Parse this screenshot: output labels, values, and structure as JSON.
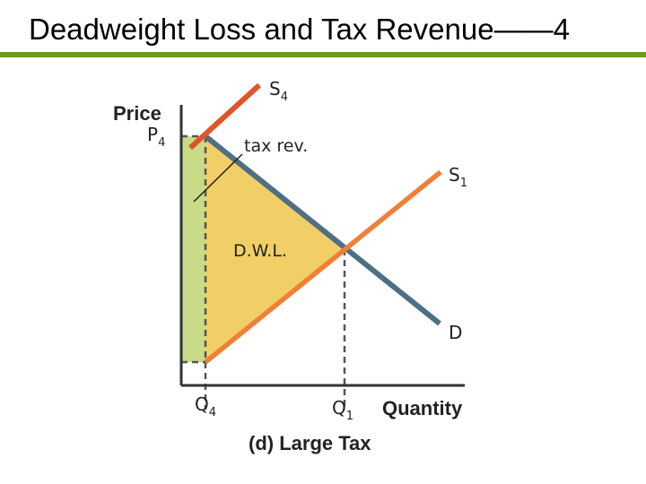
{
  "slide": {
    "title": "Deadweight Loss and Tax Revenue——4"
  },
  "diagram": {
    "axis_labels": {
      "price": "Price",
      "quantity": "Quantity"
    },
    "curve_labels": {
      "supply_taxed": "S",
      "supply_taxed_sub": "4",
      "supply_original": "S",
      "supply_original_sub": "1",
      "demand": "D"
    },
    "price_tick": {
      "main": "P",
      "sub": "4"
    },
    "quantity_ticks": [
      {
        "main": "Q",
        "sub": "4"
      },
      {
        "main": "Q",
        "sub": "1"
      }
    ],
    "region_labels": {
      "tax_revenue": "tax rev.",
      "deadweight_loss": "D.W.L."
    },
    "caption": "(d) Large Tax"
  },
  "colors": {
    "title_rule": "#6b9a1f",
    "tax_revenue_fill": "#c8dc88",
    "dwl_fill": "#f1cf66",
    "demand_line": "#4e6f84",
    "supply_original_line": "#f07f37",
    "supply_taxed_line": "#e05528",
    "axis": "#333333",
    "dashed_guides": "#555555"
  }
}
